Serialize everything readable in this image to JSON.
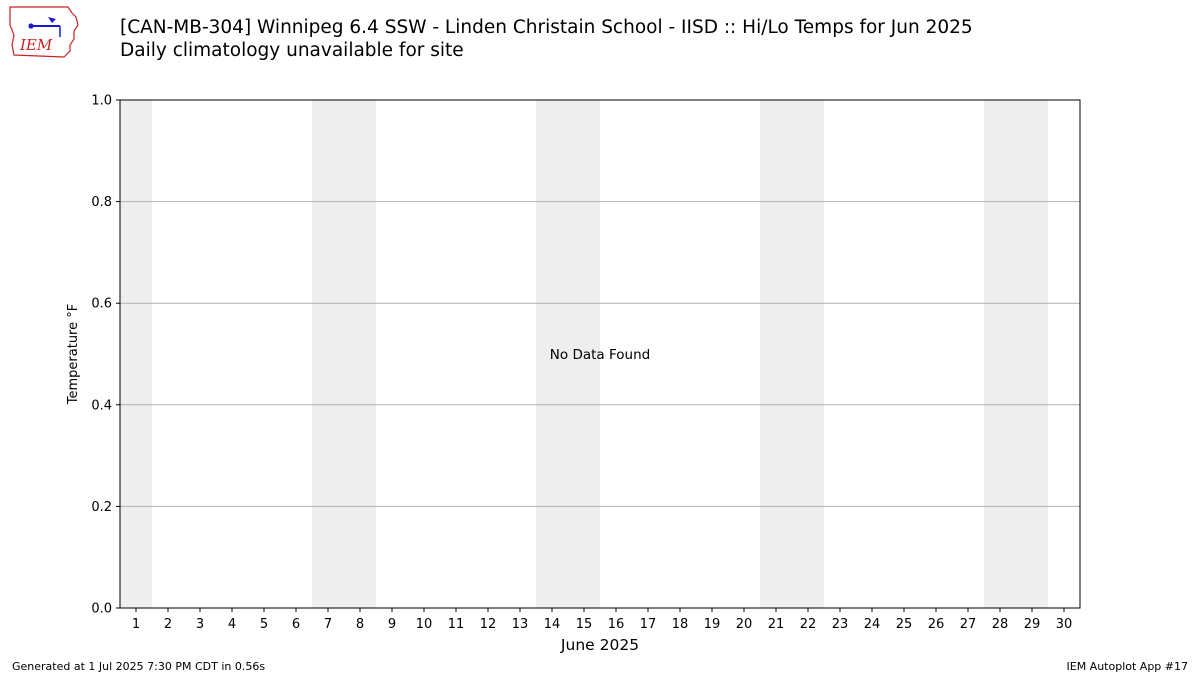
{
  "header": {
    "title": "[CAN-MB-304] Winnipeg 6.4 SSW - Linden Christain School - IISD :: Hi/Lo Temps for Jun 2025",
    "subtitle": "Daily climatology unavailable for site",
    "logo_text": "IEM"
  },
  "footer": {
    "generated": "Generated at 1 Jul 2025 7:30 PM CDT in 0.56s",
    "app": "IEM Autoplot App #17"
  },
  "colors": {
    "weekend_band": "#eeeeee",
    "grid": "#b0b0b0",
    "axis": "#000000",
    "logo_red": "#cc2222",
    "logo_blue": "#1a1acc"
  },
  "chart_data": {
    "type": "bar",
    "title": "[CAN-MB-304] Winnipeg 6.4 SSW - Linden Christain School - IISD :: Hi/Lo Temps for Jun 2025",
    "subtitle": "Daily climatology unavailable for site",
    "xlabel": "June 2025",
    "ylabel": "Temperature °F",
    "categories": [
      "1",
      "2",
      "3",
      "4",
      "5",
      "6",
      "7",
      "8",
      "9",
      "10",
      "11",
      "12",
      "13",
      "14",
      "15",
      "16",
      "17",
      "18",
      "19",
      "20",
      "21",
      "22",
      "23",
      "24",
      "25",
      "26",
      "27",
      "28",
      "29",
      "30"
    ],
    "series": [],
    "xlim": [
      0.5,
      30.5
    ],
    "ylim": [
      0,
      1
    ],
    "yticks": [
      "0.0",
      "0.2",
      "0.4",
      "0.6",
      "0.8",
      "1.0"
    ],
    "weekend_days": [
      1,
      7,
      8,
      14,
      15,
      21,
      22,
      28,
      29
    ],
    "grid": "y-major",
    "annotation": "No Data Found"
  }
}
